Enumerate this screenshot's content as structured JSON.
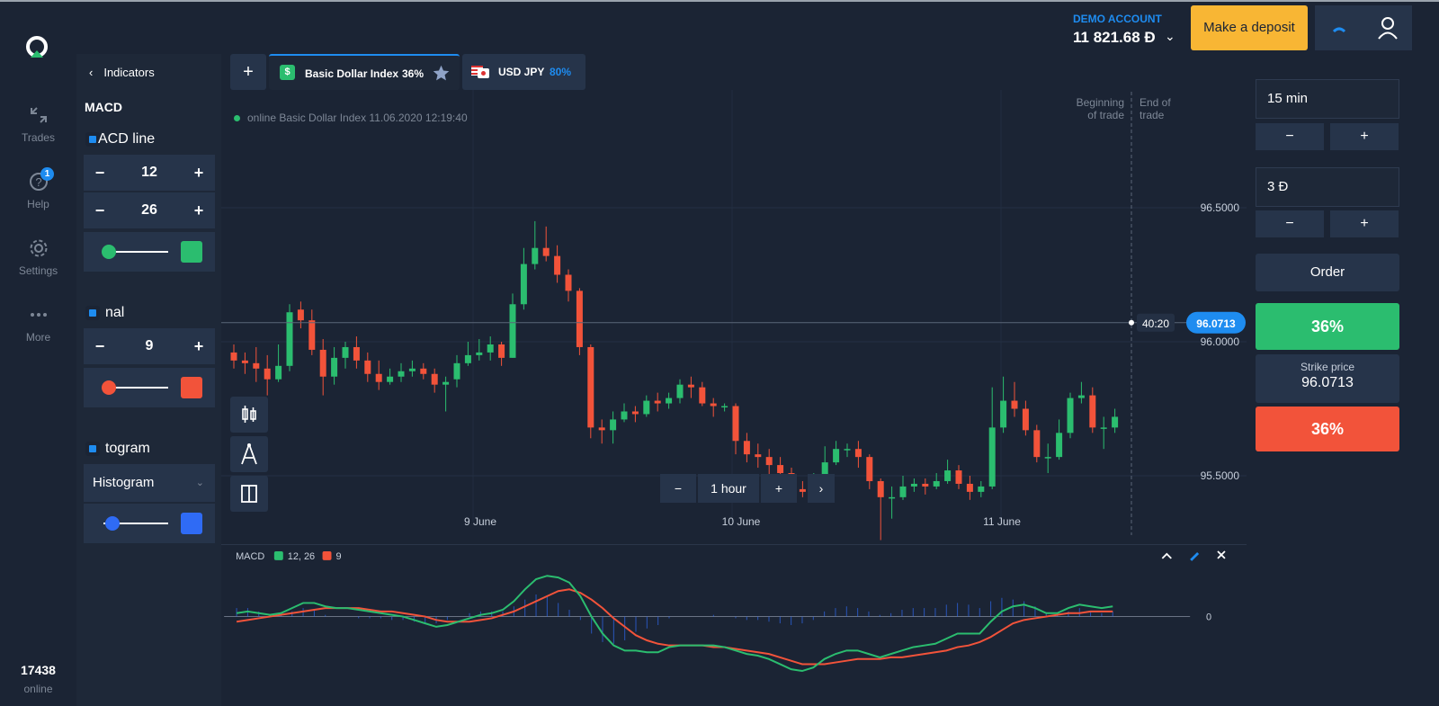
{
  "nav": {
    "trades": "Trades",
    "help": "Help",
    "help_badge": "1",
    "settings": "Settings",
    "more": "More",
    "online_count": "17438",
    "online_label": "online"
  },
  "indicators": {
    "back_label": "Indicators",
    "title": "MACD",
    "macd_line_label": "ACD line",
    "fast": "12",
    "slow": "26",
    "macd_color": "#2bbd6f",
    "signal_label": "nal",
    "signal": "9",
    "signal_color": "#f2533a",
    "histogram_label": "togram",
    "histogram_type": "Histogram",
    "histogram_color": "#2f6bf5"
  },
  "header": {
    "account_label": "DEMO ACCOUNT",
    "balance": "11 821.68 Đ",
    "deposit_label": "Make a deposit"
  },
  "tabs": [
    {
      "name": "Basic Dollar Index",
      "payout": "36%"
    },
    {
      "name": "USD JPY",
      "payout": "80%"
    }
  ],
  "chart": {
    "online_info": "online Basic Dollar Index  11.06.2020 12:19:40",
    "beginning_label_1": "Beginning",
    "beginning_label_2": "of trade",
    "end_label_1": "End of",
    "end_label_2": "trade",
    "timer": "40:20",
    "current_price": "96.0713",
    "timeframe": "1 hour",
    "y_ticks": [
      "96.5000",
      "96.0000",
      "95.5000"
    ],
    "x_ticks": [
      "9 June",
      "10 June",
      "11 June"
    ],
    "macd_label": "MACD",
    "macd_series_label": "12, 26",
    "signal_series_label": "9",
    "macd_zero": "0"
  },
  "chart_data": {
    "type": "candlestick",
    "y_ticks": [
      96.5,
      96.0,
      95.5
    ],
    "current_price": 96.0713,
    "candles": [
      [
        95.96,
        95.93,
        95.99,
        95.9
      ],
      [
        95.93,
        95.92,
        95.96,
        95.88
      ],
      [
        95.92,
        95.9,
        95.98,
        95.85
      ],
      [
        95.9,
        95.86,
        95.95,
        95.8
      ],
      [
        95.86,
        95.91,
        95.99,
        95.85
      ],
      [
        95.91,
        96.11,
        96.14,
        95.89
      ],
      [
        96.12,
        96.08,
        96.15,
        96.05
      ],
      [
        96.08,
        95.97,
        96.12,
        95.95
      ],
      [
        95.97,
        95.87,
        96.01,
        95.8
      ],
      [
        95.87,
        95.94,
        95.98,
        95.84
      ],
      [
        95.94,
        95.98,
        96.0,
        95.9
      ],
      [
        95.98,
        95.93,
        96.02,
        95.9
      ],
      [
        95.93,
        95.88,
        95.96,
        95.85
      ],
      [
        95.88,
        95.85,
        95.93,
        95.82
      ],
      [
        95.85,
        95.87,
        95.9,
        95.84
      ],
      [
        95.87,
        95.89,
        95.92,
        95.85
      ],
      [
        95.89,
        95.9,
        95.93,
        95.87
      ],
      [
        95.9,
        95.88,
        95.92,
        95.86
      ],
      [
        95.88,
        95.84,
        95.9,
        95.81
      ],
      [
        95.84,
        95.85,
        95.87,
        95.74
      ],
      [
        95.86,
        95.92,
        95.95,
        95.83
      ],
      [
        95.92,
        95.95,
        96.0,
        95.91
      ],
      [
        95.95,
        95.96,
        96.01,
        95.93
      ],
      [
        95.96,
        95.99,
        96.02,
        95.93
      ],
      [
        95.99,
        95.94,
        96.0,
        95.91
      ],
      [
        95.94,
        96.14,
        96.18,
        95.94
      ],
      [
        96.14,
        96.29,
        96.35,
        96.12
      ],
      [
        96.29,
        96.35,
        96.45,
        96.27
      ],
      [
        96.35,
        96.32,
        96.43,
        96.3
      ],
      [
        96.32,
        96.25,
        96.36,
        96.22
      ],
      [
        96.25,
        96.19,
        96.27,
        96.15
      ],
      [
        96.19,
        95.98,
        96.2,
        95.95
      ],
      [
        95.98,
        95.68,
        95.99,
        95.64
      ],
      [
        95.68,
        95.67,
        95.71,
        95.62
      ],
      [
        95.67,
        95.71,
        95.74,
        95.62
      ],
      [
        95.71,
        95.74,
        95.77,
        95.7
      ],
      [
        95.74,
        95.73,
        95.76,
        95.7
      ],
      [
        95.73,
        95.78,
        95.8,
        95.72
      ],
      [
        95.78,
        95.77,
        95.81,
        95.74
      ],
      [
        95.77,
        95.79,
        95.81,
        95.75
      ],
      [
        95.79,
        95.84,
        95.86,
        95.77
      ],
      [
        95.84,
        95.83,
        95.87,
        95.79
      ],
      [
        95.83,
        95.77,
        95.85,
        95.76
      ],
      [
        95.77,
        95.76,
        95.79,
        95.72
      ],
      [
        95.76,
        95.76,
        95.77,
        95.74
      ],
      [
        95.76,
        95.63,
        95.77,
        95.58
      ],
      [
        95.63,
        95.58,
        95.66,
        95.55
      ],
      [
        95.58,
        95.57,
        95.62,
        95.53
      ],
      [
        95.57,
        95.54,
        95.6,
        95.5
      ],
      [
        95.54,
        95.51,
        95.57,
        95.48
      ],
      [
        95.51,
        95.45,
        95.53,
        95.43
      ],
      [
        95.45,
        95.44,
        95.48,
        95.42
      ],
      [
        95.44,
        95.46,
        95.51,
        95.41
      ],
      [
        95.46,
        95.55,
        95.61,
        95.43
      ],
      [
        95.55,
        95.6,
        95.63,
        95.54
      ],
      [
        95.6,
        95.6,
        95.62,
        95.57
      ],
      [
        95.6,
        95.57,
        95.63,
        95.53
      ],
      [
        95.57,
        95.48,
        95.58,
        95.45
      ],
      [
        95.48,
        95.42,
        95.49,
        95.26
      ],
      [
        95.42,
        95.42,
        95.46,
        95.34
      ],
      [
        95.42,
        95.46,
        95.5,
        95.41
      ],
      [
        95.46,
        95.47,
        95.49,
        95.44
      ],
      [
        95.47,
        95.46,
        95.49,
        95.43
      ],
      [
        95.46,
        95.48,
        95.51,
        95.45
      ],
      [
        95.48,
        95.52,
        95.56,
        95.47
      ],
      [
        95.52,
        95.47,
        95.54,
        95.45
      ],
      [
        95.47,
        95.44,
        95.5,
        95.41
      ],
      [
        95.44,
        95.46,
        95.48,
        95.42
      ],
      [
        95.46,
        95.68,
        95.83,
        95.45
      ],
      [
        95.68,
        95.78,
        95.87,
        95.66
      ],
      [
        95.78,
        95.75,
        95.85,
        95.72
      ],
      [
        95.75,
        95.67,
        95.78,
        95.65
      ],
      [
        95.67,
        95.57,
        95.69,
        95.55
      ],
      [
        95.57,
        95.57,
        95.62,
        95.51
      ],
      [
        95.57,
        95.66,
        95.71,
        95.56
      ],
      [
        95.66,
        95.79,
        95.81,
        95.64
      ],
      [
        95.79,
        95.8,
        95.85,
        95.77
      ],
      [
        95.8,
        95.68,
        95.83,
        95.66
      ],
      [
        95.68,
        95.68,
        95.72,
        95.6
      ],
      [
        95.68,
        95.72,
        95.75,
        95.66
      ]
    ],
    "macd": [
      0.02,
      0.03,
      0.02,
      0.01,
      0.02,
      0.05,
      0.08,
      0.08,
      0.06,
      0.05,
      0.05,
      0.04,
      0.03,
      0.02,
      0.01,
      0,
      -0.02,
      -0.04,
      -0.06,
      -0.05,
      -0.03,
      -0.01,
      0.01,
      0.02,
      0.04,
      0.09,
      0.16,
      0.22,
      0.24,
      0.23,
      0.2,
      0.12,
      0,
      -0.1,
      -0.17,
      -0.2,
      -0.2,
      -0.21,
      -0.21,
      -0.18,
      -0.17,
      -0.17,
      -0.17,
      -0.17,
      -0.18,
      -0.2,
      -0.22,
      -0.23,
      -0.25,
      -0.28,
      -0.31,
      -0.32,
      -0.3,
      -0.25,
      -0.22,
      -0.2,
      -0.2,
      -0.22,
      -0.24,
      -0.22,
      -0.2,
      -0.18,
      -0.17,
      -0.16,
      -0.13,
      -0.1,
      -0.1,
      -0.1,
      -0.03,
      0.03,
      0.06,
      0.07,
      0.05,
      0.02,
      0.02,
      0.05,
      0.07,
      0.06,
      0.05,
      0.06
    ],
    "signal": [
      -0.03,
      -0.02,
      -0.01,
      0,
      0.01,
      0.02,
      0.03,
      0.04,
      0.05,
      0.05,
      0.05,
      0.05,
      0.04,
      0.03,
      0.03,
      0.02,
      0.01,
      0,
      -0.02,
      -0.03,
      -0.03,
      -0.03,
      -0.02,
      -0.01,
      0.01,
      0.03,
      0.06,
      0.09,
      0.12,
      0.15,
      0.16,
      0.14,
      0.1,
      0.05,
      -0.01,
      -0.06,
      -0.11,
      -0.14,
      -0.16,
      -0.17,
      -0.17,
      -0.17,
      -0.17,
      -0.18,
      -0.18,
      -0.19,
      -0.2,
      -0.21,
      -0.22,
      -0.24,
      -0.26,
      -0.28,
      -0.28,
      -0.28,
      -0.27,
      -0.26,
      -0.25,
      -0.25,
      -0.25,
      -0.24,
      -0.24,
      -0.23,
      -0.22,
      -0.21,
      -0.2,
      -0.18,
      -0.17,
      -0.15,
      -0.12,
      -0.08,
      -0.04,
      -0.02,
      -0.01,
      0,
      0.01,
      0.02,
      0.02,
      0.03,
      0.03,
      0.03
    ]
  },
  "right_panel": {
    "duration": "15 min",
    "amount": "3 Đ",
    "minus": "−",
    "plus": "+",
    "order_label": "Order",
    "up_payout": "36%",
    "strike_label": "Strike price",
    "strike_value": "96.0713",
    "down_payout": "36%",
    "up_color": "#2bbd6f",
    "down_color": "#f2533a"
  }
}
